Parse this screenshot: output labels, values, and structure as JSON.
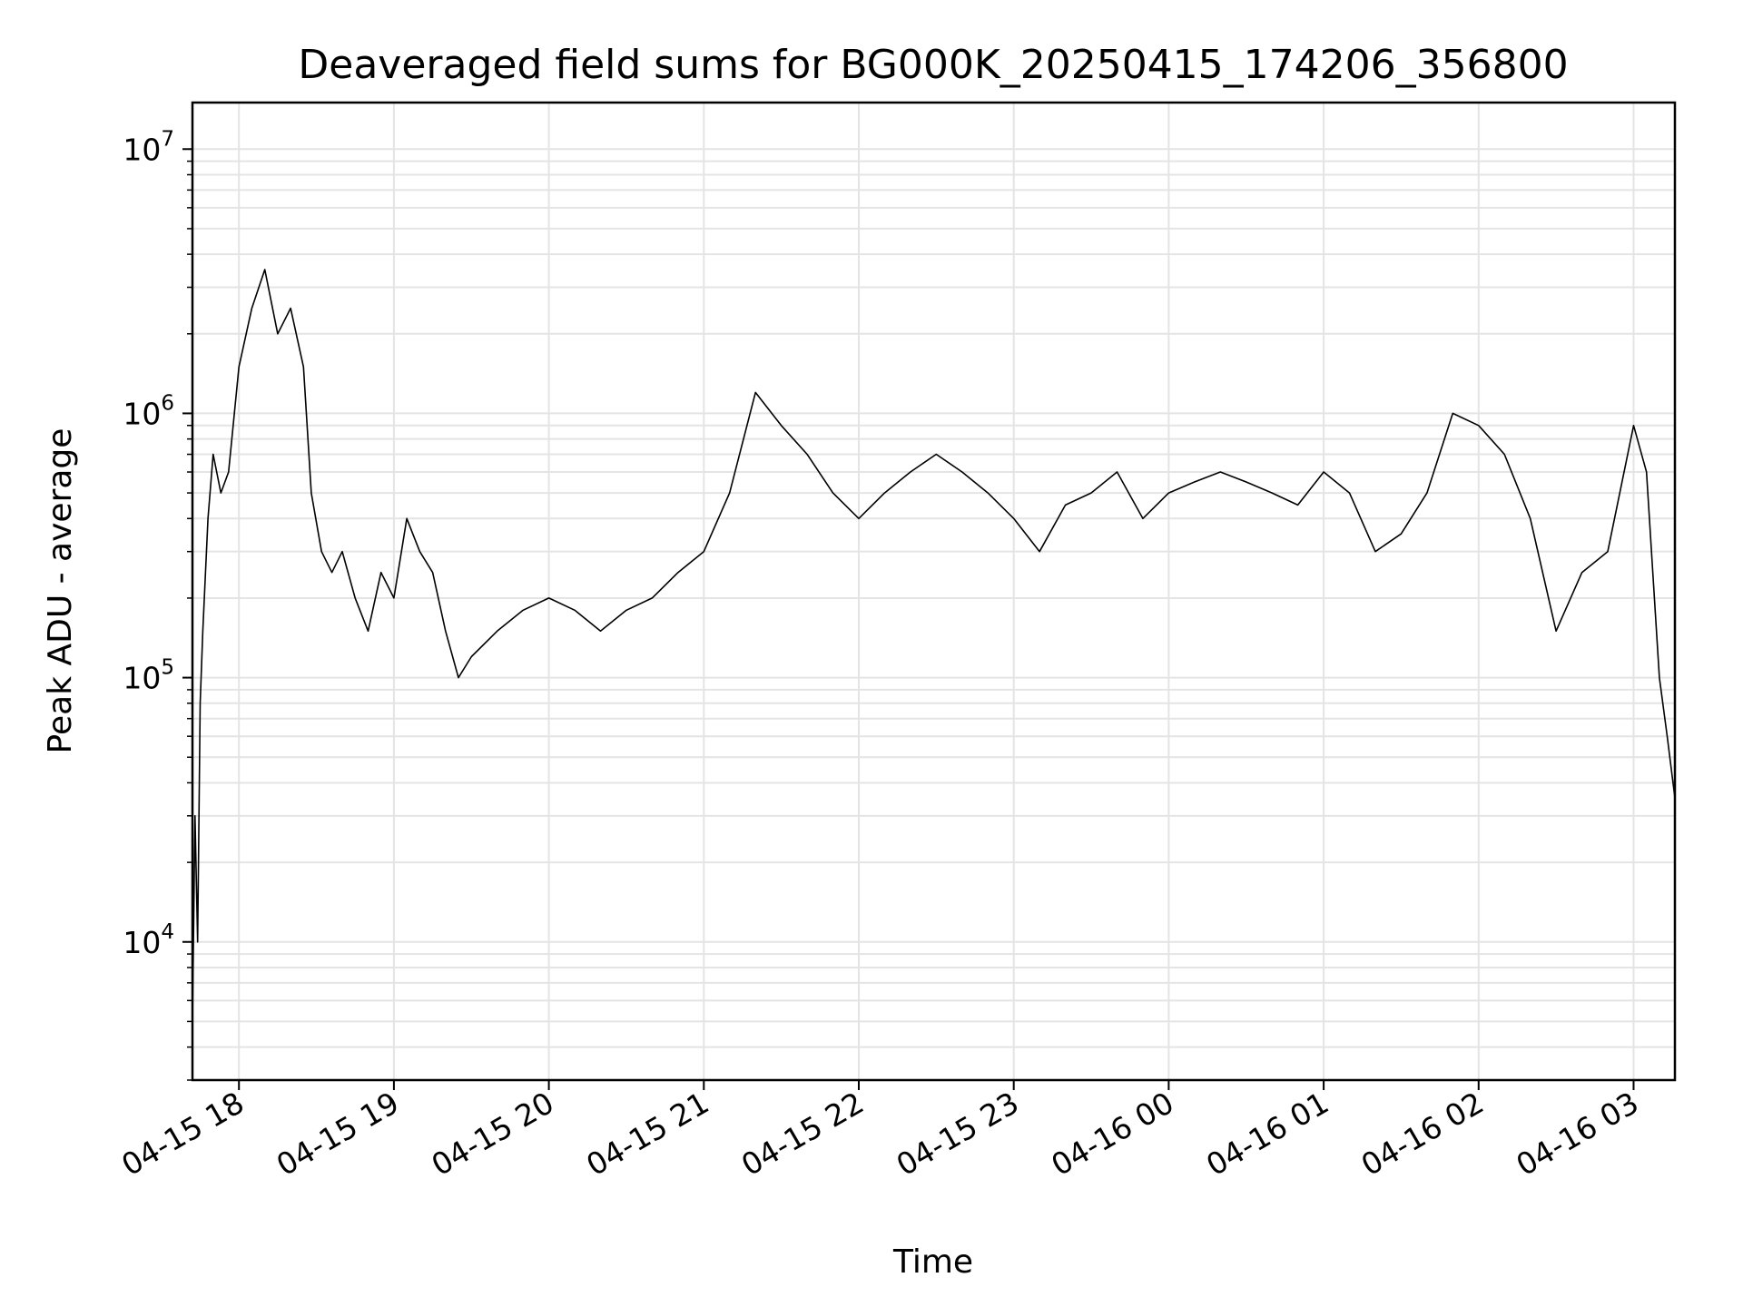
{
  "chart_data": {
    "type": "line",
    "title": "Deaveraged field sums for BG000K_20250415_174206_356800",
    "xlabel": "Time",
    "ylabel": "Peak ADU - average",
    "yscale": "log",
    "ylim": [
      3000,
      15000000
    ],
    "xlim": [
      "2025-04-15 17:42",
      "2025-04-16 03:16"
    ],
    "x_ticks": [
      {
        "value": "2025-04-15 18:00",
        "label": "04-15 18"
      },
      {
        "value": "2025-04-15 19:00",
        "label": "04-15 19"
      },
      {
        "value": "2025-04-15 20:00",
        "label": "04-15 20"
      },
      {
        "value": "2025-04-15 21:00",
        "label": "04-15 21"
      },
      {
        "value": "2025-04-15 22:00",
        "label": "04-15 22"
      },
      {
        "value": "2025-04-15 23:00",
        "label": "04-15 23"
      },
      {
        "value": "2025-04-16 00:00",
        "label": "04-16 00"
      },
      {
        "value": "2025-04-16 01:00",
        "label": "04-16 01"
      },
      {
        "value": "2025-04-16 02:00",
        "label": "04-16 02"
      },
      {
        "value": "2025-04-16 03:00",
        "label": "04-16 03"
      }
    ],
    "y_ticks": [
      {
        "value": 10000,
        "base": "10",
        "exp": "4"
      },
      {
        "value": 100000,
        "base": "10",
        "exp": "5"
      },
      {
        "value": 1000000,
        "base": "10",
        "exp": "6"
      },
      {
        "value": 10000000,
        "base": "10",
        "exp": "7"
      }
    ],
    "grid": true,
    "line_color": "#000000",
    "series": [
      {
        "x": [
          "2025-04-15 17:42",
          "2025-04-15 17:43",
          "2025-04-15 17:44",
          "2025-04-15 17:45",
          "2025-04-15 17:46",
          "2025-04-15 17:48",
          "2025-04-15 17:50",
          "2025-04-15 17:53",
          "2025-04-15 17:56",
          "2025-04-15 18:00",
          "2025-04-15 18:05",
          "2025-04-15 18:10",
          "2025-04-15 18:15",
          "2025-04-15 18:20",
          "2025-04-15 18:25",
          "2025-04-15 18:28",
          "2025-04-15 18:32",
          "2025-04-15 18:36",
          "2025-04-15 18:40",
          "2025-04-15 18:45",
          "2025-04-15 18:50",
          "2025-04-15 18:55",
          "2025-04-15 19:00",
          "2025-04-15 19:05",
          "2025-04-15 19:10",
          "2025-04-15 19:15",
          "2025-04-15 19:20",
          "2025-04-15 19:25",
          "2025-04-15 19:30",
          "2025-04-15 19:40",
          "2025-04-15 19:50",
          "2025-04-15 20:00",
          "2025-04-15 20:10",
          "2025-04-15 20:20",
          "2025-04-15 20:30",
          "2025-04-15 20:40",
          "2025-04-15 20:50",
          "2025-04-15 21:00",
          "2025-04-15 21:10",
          "2025-04-15 21:20",
          "2025-04-15 21:30",
          "2025-04-15 21:40",
          "2025-04-15 21:50",
          "2025-04-15 22:00",
          "2025-04-15 22:10",
          "2025-04-15 22:20",
          "2025-04-15 22:30",
          "2025-04-15 22:40",
          "2025-04-15 22:50",
          "2025-04-15 23:00",
          "2025-04-15 23:10",
          "2025-04-15 23:20",
          "2025-04-15 23:30",
          "2025-04-15 23:40",
          "2025-04-15 23:50",
          "2025-04-16 00:00",
          "2025-04-16 00:10",
          "2025-04-16 00:20",
          "2025-04-16 00:30",
          "2025-04-16 00:40",
          "2025-04-16 00:50",
          "2025-04-16 01:00",
          "2025-04-16 01:10",
          "2025-04-16 01:20",
          "2025-04-16 01:30",
          "2025-04-16 01:40",
          "2025-04-16 01:50",
          "2025-04-16 02:00",
          "2025-04-16 02:10",
          "2025-04-16 02:20",
          "2025-04-16 02:30",
          "2025-04-16 02:40",
          "2025-04-16 02:50",
          "2025-04-16 03:00",
          "2025-04-16 03:05",
          "2025-04-16 03:10",
          "2025-04-16 03:13",
          "2025-04-16 03:16"
        ],
        "y": [
          5000,
          30000,
          10000,
          80000,
          150000,
          400000,
          700000,
          500000,
          600000,
          1500000,
          2500000,
          3500000,
          2000000,
          2500000,
          1500000,
          500000,
          300000,
          250000,
          300000,
          200000,
          150000,
          250000,
          200000,
          400000,
          300000,
          250000,
          150000,
          100000,
          120000,
          150000,
          180000,
          200000,
          180000,
          150000,
          180000,
          200000,
          250000,
          300000,
          500000,
          1200000,
          900000,
          700000,
          500000,
          400000,
          500000,
          600000,
          700000,
          600000,
          500000,
          400000,
          300000,
          450000,
          500000,
          600000,
          400000,
          500000,
          550000,
          600000,
          550000,
          500000,
          450000,
          600000,
          500000,
          300000,
          350000,
          500000,
          1000000,
          900000,
          700000,
          400000,
          150000,
          250000,
          300000,
          900000,
          600000,
          100000,
          60000,
          35000
        ]
      }
    ]
  }
}
